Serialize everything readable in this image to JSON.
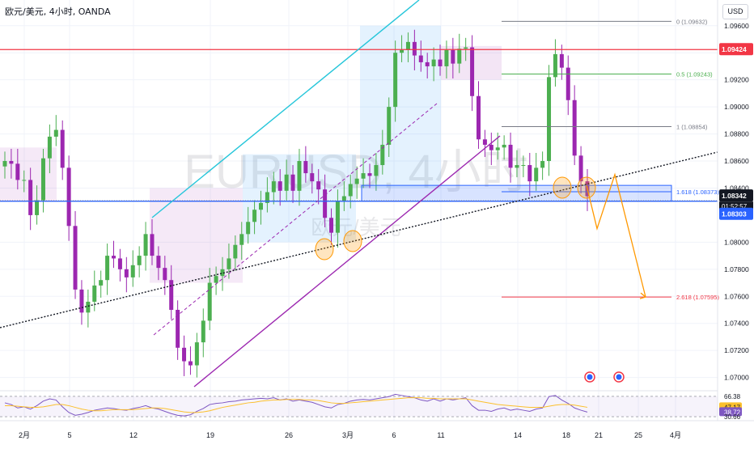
{
  "header": {
    "title": "欧元/美元, 4小时, OANDA",
    "currency_button": "USD"
  },
  "watermark": {
    "symbol": "EURUSD, 4小时",
    "name": "欧元/美元"
  },
  "chart_data": [
    {
      "type": "candlestick",
      "title": "欧元/美元, 4小时, OANDA",
      "y_ticks": [
        "1.09600",
        "1.09400",
        "1.09200",
        "1.09000",
        "1.08800",
        "1.08600",
        "1.08400",
        "1.08000",
        "1.07800",
        "1.07600",
        "1.07400",
        "1.07200",
        "1.07000"
      ],
      "y_tick_values": [
        1.096,
        1.094,
        1.092,
        1.09,
        1.088,
        1.086,
        1.084,
        1.08,
        1.078,
        1.076,
        1.074,
        1.072,
        1.07
      ],
      "ylim": [
        1.0692,
        1.0979
      ],
      "x_ticks": [
        "2月",
        "5",
        "12",
        "19",
        "26",
        "3月",
        "6",
        "11",
        "14",
        "18",
        "21",
        "25",
        "4月"
      ],
      "price_labels": {
        "red_line": "1.09424",
        "current_price": "1.08342",
        "countdown": "01:52:57",
        "blue_line": "1.08303"
      },
      "fibonacci": [
        {
          "label": "0 (1.09632)",
          "value": 1.09632,
          "color": "#787b86"
        },
        {
          "label": "0.5 (1.09243)",
          "value": 1.09243,
          "color": "#4caf50"
        },
        {
          "label": "1 (1.08854)",
          "value": 1.08854,
          "color": "#787b86"
        },
        {
          "label": "1.618 (1.08373)",
          "value": 1.08373,
          "color": "#2962ff"
        },
        {
          "label": "2.618 (1.07595)",
          "value": 1.07595,
          "color": "#f23645"
        }
      ],
      "horizontal_lines": [
        {
          "value": 1.09424,
          "color": "#f23645"
        },
        {
          "value": 1.08303,
          "color": "#2962ff"
        }
      ],
      "support_zone": [
        1.08303,
        1.0842
      ],
      "close_series": [
        1.086,
        1.0858,
        1.0846,
        1.0846,
        1.082,
        1.0831,
        1.0862,
        1.0878,
        1.0883,
        1.0855,
        1.0812,
        1.0765,
        1.0748,
        1.0756,
        1.0768,
        1.0772,
        1.079,
        1.0788,
        1.078,
        1.0774,
        1.0783,
        1.079,
        1.0806,
        1.079,
        1.0781,
        1.0772,
        1.075,
        1.0722,
        1.0712,
        1.0709,
        1.0726,
        1.0742,
        1.077,
        1.0775,
        1.078,
        1.0788,
        1.0798,
        1.0806,
        1.0815,
        1.0824,
        1.0829,
        1.0837,
        1.0845,
        1.0838,
        1.085,
        1.0838,
        1.086,
        1.0851,
        1.0845,
        1.0839,
        1.0818,
        1.0807,
        1.083,
        1.0834,
        1.0843,
        1.0847,
        1.0851,
        1.0849,
        1.0857,
        1.0872,
        1.09,
        1.094,
        1.0942,
        1.0948,
        1.0938,
        1.0933,
        1.093,
        1.0935,
        1.093,
        1.0942,
        1.0932,
        1.0943,
        1.0944,
        1.0908,
        1.0876,
        1.0872,
        1.0868,
        1.087,
        1.0872,
        1.0855,
        1.0857,
        1.0857,
        1.0845,
        1.0855,
        1.086,
        1.0922,
        1.0939,
        1.0929,
        1.0905,
        1.0864,
        1.0845,
        1.0834
      ],
      "projection": [
        1.0842,
        1.081,
        1.085,
        1.07595
      ]
    },
    {
      "type": "line",
      "name": "RSI",
      "y_ticks": [
        "66.38",
        "47.17",
        "38.72",
        "30.66"
      ],
      "y_tick_values": [
        66.38,
        47.17,
        38.72,
        30.66
      ],
      "ylim": [
        25,
        72
      ],
      "values": [
        55,
        52,
        46,
        48,
        44,
        50,
        58,
        62,
        60,
        48,
        38,
        33,
        35,
        38,
        42,
        44,
        46,
        45,
        43,
        42,
        45,
        47,
        50,
        46,
        44,
        40,
        36,
        33,
        32,
        34,
        40,
        45,
        52,
        54,
        55,
        57,
        58,
        60,
        61,
        62,
        63,
        62,
        64,
        60,
        62,
        58,
        60,
        58,
        56,
        52,
        48,
        46,
        52,
        54,
        58,
        60,
        61,
        60,
        62,
        64,
        66,
        70,
        68,
        66,
        64,
        60,
        58,
        62,
        58,
        62,
        60,
        62,
        64,
        50,
        42,
        42,
        40,
        44,
        46,
        42,
        44,
        42,
        40,
        44,
        46,
        66,
        68,
        60,
        54,
        46,
        42,
        38.72
      ],
      "signal": [
        50,
        50,
        49,
        48,
        47,
        47,
        48,
        50,
        52,
        52,
        50,
        47,
        44,
        42,
        41,
        41,
        42,
        43,
        43,
        43,
        43,
        44,
        45,
        46,
        46,
        45,
        43,
        41,
        39,
        38,
        38,
        39,
        41,
        44,
        47,
        49,
        51,
        53,
        55,
        56,
        58,
        59,
        60,
        60,
        61,
        61,
        61,
        60,
        60,
        59,
        57,
        55,
        54,
        54,
        55,
        56,
        57,
        58,
        59,
        60,
        61,
        62,
        63,
        64,
        64,
        64,
        63,
        63,
        62,
        62,
        62,
        62,
        62,
        60,
        58,
        56,
        54,
        52,
        51,
        50,
        49,
        48,
        47,
        47,
        47,
        49,
        51,
        52,
        52,
        51,
        49,
        47.17
      ]
    }
  ]
}
